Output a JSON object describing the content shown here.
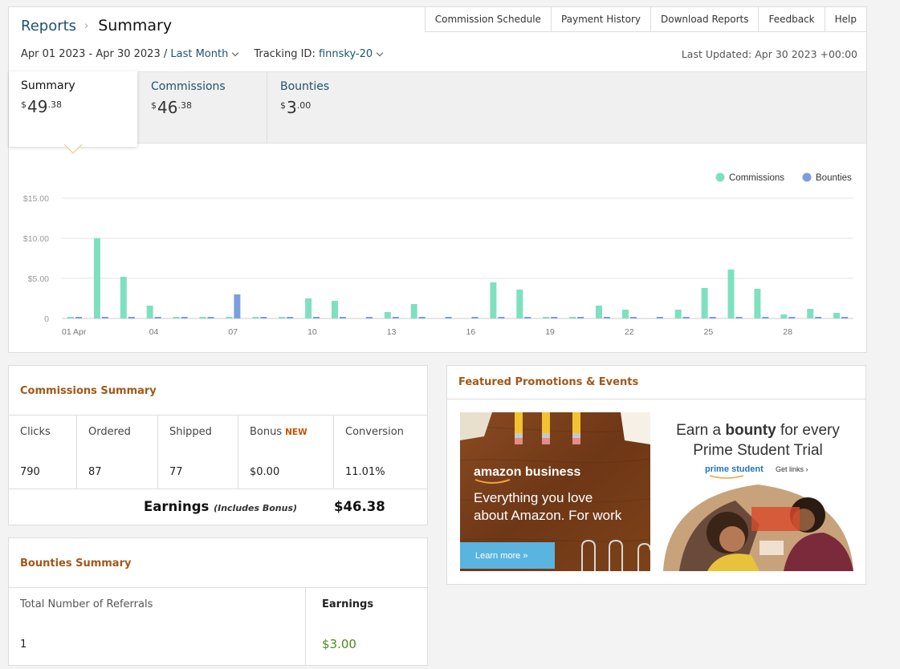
{
  "breadcrumb": {
    "parent": "Reports",
    "current": "Summary"
  },
  "top_nav": [
    "Commission Schedule",
    "Payment History",
    "Download Reports",
    "Feedback",
    "Help"
  ],
  "filters": {
    "date_range": "Apr 01 2023 - Apr 30 2023 /",
    "period": "Last Month",
    "tracking_label": "Tracking ID:",
    "tracking_id": "finnsky-20",
    "last_updated": "Last Updated: Apr 30 2023 +00:00"
  },
  "tabs": [
    {
      "label": "Summary",
      "currency": "$",
      "whole": "49",
      "fraction": ".38"
    },
    {
      "label": "Commissions",
      "currency": "$",
      "whole": "46",
      "fraction": ".38"
    },
    {
      "label": "Bounties",
      "currency": "$",
      "whole": "3",
      "fraction": ".00"
    }
  ],
  "chart_data": {
    "type": "bar",
    "legend": [
      "Commissions",
      "Bounties"
    ],
    "legend_position": "top-right",
    "y_ticks": [
      "0",
      "$5.00",
      "$10.00",
      "$15.00"
    ],
    "ylim": [
      0,
      15
    ],
    "x_tick_labels": [
      "01 Apr",
      "04",
      "07",
      "10",
      "13",
      "16",
      "19",
      "22",
      "25",
      "28"
    ],
    "x_tick_days": [
      1,
      4,
      7,
      10,
      13,
      16,
      19,
      22,
      25,
      28
    ],
    "days": [
      1,
      2,
      3,
      4,
      5,
      6,
      7,
      8,
      9,
      10,
      11,
      12,
      13,
      14,
      15,
      16,
      17,
      18,
      19,
      20,
      21,
      22,
      23,
      24,
      25,
      26,
      27,
      28,
      29,
      30
    ],
    "series": [
      {
        "name": "Commissions",
        "color": "#7fe0bf",
        "values": [
          0.2,
          10.0,
          5.2,
          1.6,
          0.2,
          0.2,
          0.2,
          0.2,
          0.2,
          2.5,
          2.2,
          0,
          0.8,
          1.8,
          0,
          0,
          4.5,
          3.6,
          0.2,
          0.2,
          1.6,
          1.1,
          0,
          1.1,
          3.8,
          6.1,
          3.7,
          0.5,
          1.2,
          0.7
        ]
      },
      {
        "name": "Bounties",
        "color": "#7b9ee0",
        "values": [
          0.2,
          0.2,
          0.2,
          0.2,
          0.2,
          0.2,
          3.0,
          0.2,
          0.2,
          0.2,
          0.2,
          0.2,
          0.2,
          0.2,
          0.2,
          0.2,
          0.2,
          0.2,
          0.2,
          0.2,
          0.2,
          0.2,
          0.2,
          0.2,
          0.2,
          0.2,
          0.2,
          0.2,
          0.2,
          0.2
        ]
      }
    ],
    "grid": true
  },
  "commissions_summary": {
    "title": "Commissions Summary",
    "columns": [
      {
        "header": "Clicks",
        "value": "790"
      },
      {
        "header": "Ordered",
        "value": "87"
      },
      {
        "header": "Shipped",
        "value": "77"
      },
      {
        "header": "Bonus",
        "value": "$0.00",
        "badge": "NEW"
      },
      {
        "header": "Conversion",
        "value": "11.01%"
      }
    ],
    "earnings_label": "Earnings",
    "earnings_note": "(Includes Bonus)",
    "earnings_value": "$46.38"
  },
  "bounties_summary": {
    "title": "Bounties Summary",
    "referrals_label": "Total Number of Referrals",
    "referrals_value": "1",
    "earnings_label": "Earnings",
    "earnings_value": "$3.00"
  },
  "promotions": {
    "title": "Featured Promotions & Events",
    "promo1": {
      "brand": "amazon business",
      "line1": "Everything you love",
      "line2": "about Amazon. For work",
      "cta": "Learn more »"
    },
    "promo2": {
      "title_pre": "Earn a ",
      "title_bold": "bounty",
      "title_post": " for every",
      "title_line2": "Prime Student Trial",
      "brand": "prime student",
      "link": "Get links ›"
    }
  }
}
